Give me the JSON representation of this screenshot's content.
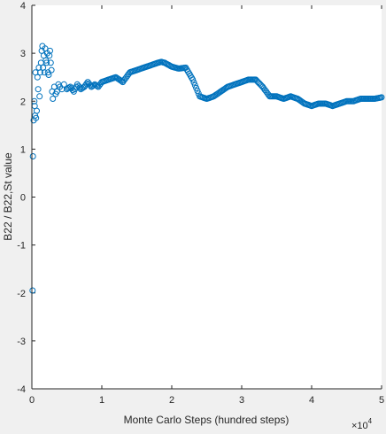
{
  "chart_data": {
    "type": "scatter",
    "title": "",
    "xlabel": "Monte Carlo Steps (hundred steps)",
    "ylabel": "B22 / B22,St value",
    "x_exponent_label": "×10",
    "x_exponent_power": "4",
    "xlim": [
      0,
      50000
    ],
    "ylim": [
      -4,
      4
    ],
    "xticks": [
      0,
      10000,
      20000,
      30000,
      40000,
      50000
    ],
    "xtick_labels": [
      "0",
      "1",
      "2",
      "3",
      "4",
      "5"
    ],
    "yticks": [
      -4,
      -3,
      -2,
      -1,
      0,
      1,
      2,
      3,
      4
    ],
    "ytick_labels": [
      "-4",
      "-3",
      "-2",
      "-1",
      "0",
      "1",
      "2",
      "3",
      "4"
    ],
    "grid": false,
    "marker": "open-circle",
    "colors": {
      "series": "#0072BD",
      "axes": "#262626",
      "plot_bg": "#ffffff",
      "figure_bg": "#f0f0f0"
    },
    "series": [
      {
        "x": [
          100,
          150,
          250,
          350,
          400,
          450,
          500,
          600,
          700,
          800,
          900,
          1000,
          1100,
          1200,
          1300,
          1400,
          1500,
          1600,
          1700,
          1800,
          1900,
          2000,
          2100,
          2200,
          2300,
          2400,
          2500,
          2600,
          2700,
          2800,
          2900,
          3000,
          3200,
          3400,
          3600,
          3800,
          4000,
          4300,
          4600,
          5000,
          5500,
          6000,
          6500,
          7000,
          7500,
          8000,
          8500,
          9000,
          9500,
          10000,
          11000,
          12000,
          13000,
          14000,
          15000,
          16000,
          17000,
          18000,
          18500,
          19000,
          20000,
          21000,
          22000,
          23000,
          24000,
          25000,
          26000,
          27000,
          28000,
          29000,
          30000,
          31000,
          32000,
          33000,
          34000,
          35000,
          36000,
          37000,
          38000,
          39000,
          40000,
          41000,
          42000,
          43000,
          44000,
          45000,
          46000,
          47000,
          48000,
          49000,
          50000
        ],
        "y": [
          -1.95,
          0.85,
          1.6,
          2.0,
          1.9,
          1.7,
          2.6,
          1.65,
          1.8,
          2.5,
          2.25,
          2.7,
          2.1,
          2.6,
          2.8,
          3.05,
          3.15,
          2.7,
          2.95,
          2.6,
          3.1,
          2.85,
          2.8,
          3.0,
          2.6,
          2.55,
          2.95,
          3.05,
          2.8,
          2.65,
          2.2,
          2.05,
          2.3,
          2.15,
          2.2,
          2.35,
          2.3,
          2.25,
          2.35,
          2.25,
          2.3,
          2.2,
          2.35,
          2.25,
          2.3,
          2.4,
          2.3,
          2.35,
          2.3,
          2.4,
          2.45,
          2.5,
          2.4,
          2.6,
          2.65,
          2.7,
          2.75,
          2.8,
          2.82,
          2.8,
          2.72,
          2.68,
          2.7,
          2.45,
          2.1,
          2.05,
          2.1,
          2.2,
          2.3,
          2.35,
          2.4,
          2.45,
          2.45,
          2.3,
          2.1,
          2.1,
          2.05,
          2.1,
          2.05,
          1.95,
          1.9,
          1.95,
          1.95,
          1.9,
          1.95,
          2.0,
          2.0,
          2.05,
          2.05,
          2.05,
          2.08
        ]
      }
    ]
  }
}
